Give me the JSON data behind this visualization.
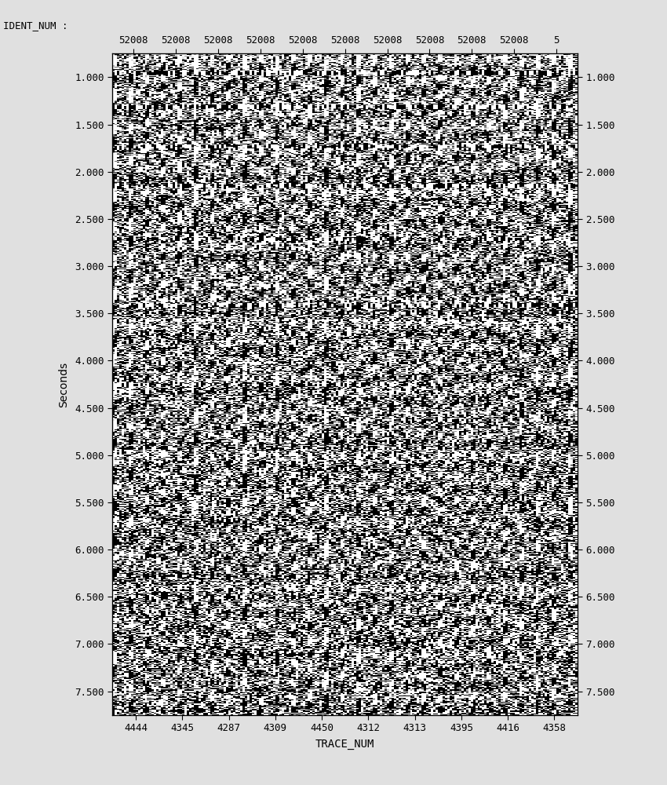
{
  "ident_num_label": "IDENT_NUM :",
  "ident_num_values": [
    "52008",
    "52008",
    "52008",
    "52008",
    "52008",
    "52008",
    "52008",
    "52008",
    "52008",
    "52008",
    "5"
  ],
  "trace_num_label": "TRACE_NUM",
  "trace_num_values": [
    "4444",
    "4345",
    "4287",
    "4309",
    "4450",
    "4312",
    "4313",
    "4395",
    "4416",
    "4358"
  ],
  "ylabel": "Seconds",
  "ymin": 0.75,
  "ymax": 7.75,
  "yticks": [
    1.0,
    1.5,
    2.0,
    2.5,
    3.0,
    3.5,
    4.0,
    4.5,
    5.0,
    5.5,
    6.0,
    6.5,
    7.0,
    7.5
  ],
  "n_traces": 200,
  "n_samples": 750,
  "background_color": "#e0e0e0",
  "fig_width": 8.5,
  "fig_height": 10.0,
  "random_seed": 42
}
